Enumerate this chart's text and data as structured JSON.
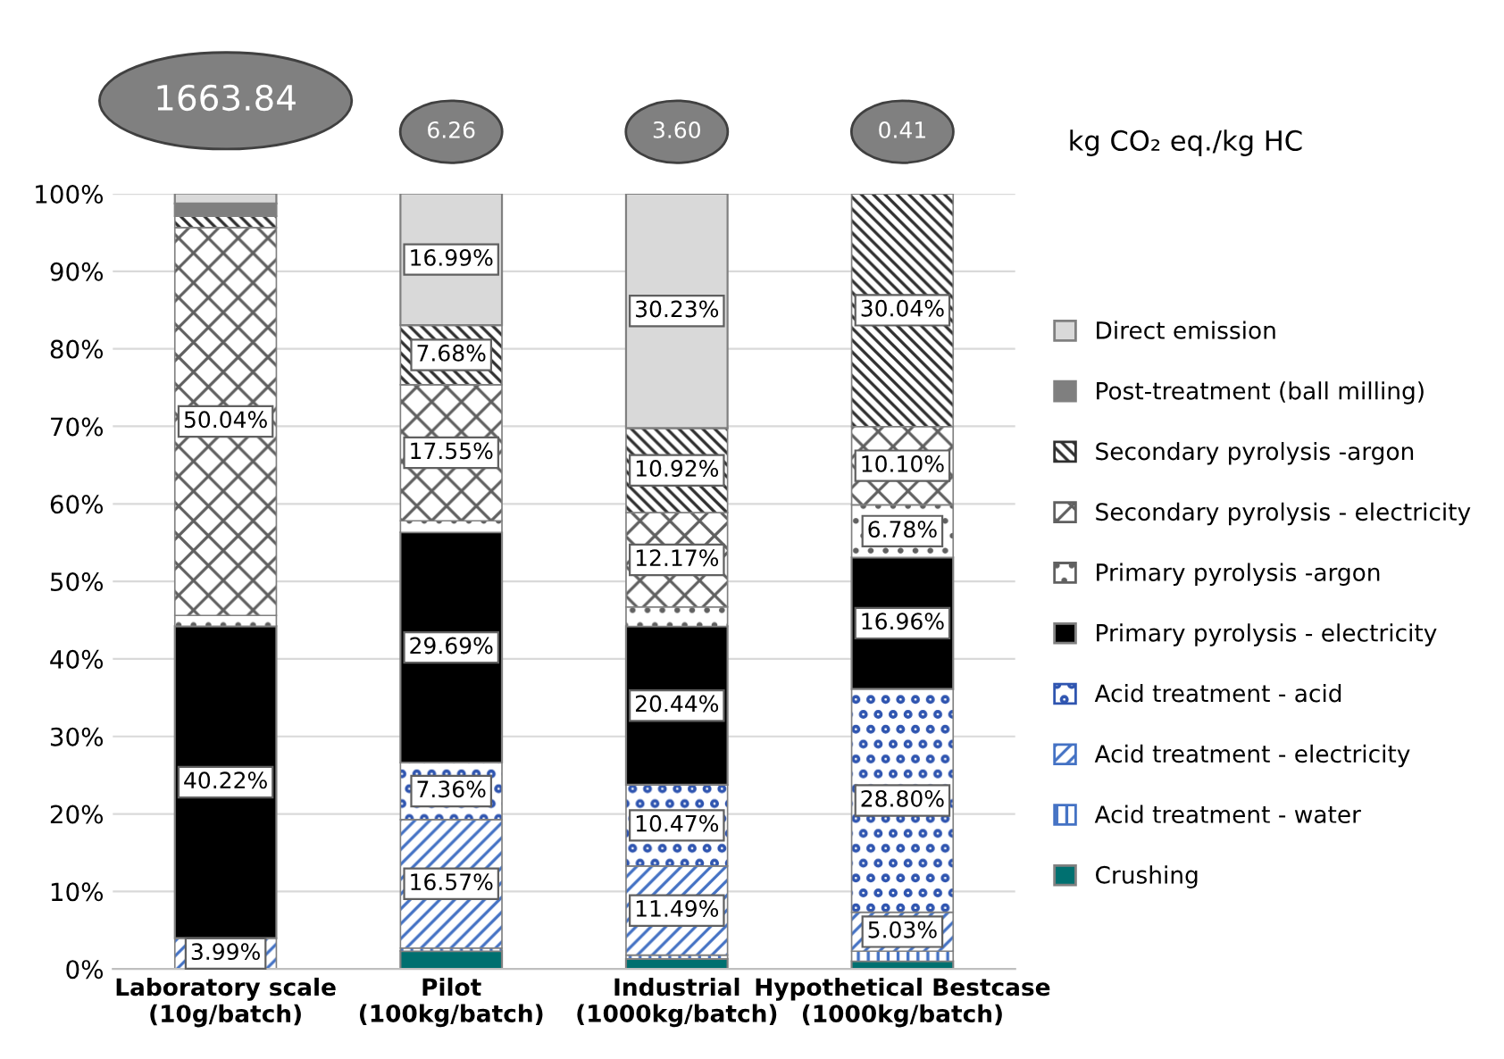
{
  "chart_data": {
    "type": "bar",
    "stacked": true,
    "categories": [
      "Laboratory scale\n(10g/batch)",
      "Pilot\n(100kg/batch)",
      "Industrial\n(1000kg/batch)",
      "Hypothetical Bestcase\n(1000kg/batch)"
    ],
    "series": [
      {
        "name": "Crushing",
        "color": "#007070",
        "values": [
          0,
          2.3,
          1.3,
          1.0
        ],
        "value_labels": [
          null,
          null,
          null,
          null
        ]
      },
      {
        "name": "Acid treatment - water",
        "color": "#4472c4",
        "values": [
          0,
          0.4,
          0.5,
          1.3
        ],
        "value_labels": [
          null,
          null,
          null,
          null
        ]
      },
      {
        "name": "Acid treatment - electricity",
        "color": "#4472c4",
        "values": [
          3.99,
          16.57,
          11.49,
          5.03
        ],
        "value_labels": [
          "3.99%",
          "16.57%",
          "11.49%",
          "5.03%"
        ]
      },
      {
        "name": "Acid treatment - acid",
        "color": "#2f55b0",
        "values": [
          0,
          7.36,
          10.47,
          28.8
        ],
        "value_labels": [
          null,
          "7.36%",
          "10.47%",
          "28.80%"
        ]
      },
      {
        "name": "Primary pyrolysis - electricity",
        "color": "#000000",
        "values": [
          40.22,
          29.69,
          20.44,
          16.96
        ],
        "value_labels": [
          "40.22%",
          "29.69%",
          "20.44%",
          "16.96%"
        ]
      },
      {
        "name": "Primary pyrolysis -argon",
        "color": "#606060",
        "values": [
          1.4,
          1.5,
          2.5,
          6.78
        ],
        "value_labels": [
          null,
          null,
          null,
          "6.78%"
        ]
      },
      {
        "name": "Secondary pyrolysis - electricity",
        "color": "#606060",
        "values": [
          50.04,
          17.55,
          12.17,
          10.1
        ],
        "value_labels": [
          "50.04%",
          "17.55%",
          "12.17%",
          "10.10%"
        ]
      },
      {
        "name": "Secondary pyrolysis -argon",
        "color": "#303030",
        "values": [
          1.5,
          7.68,
          10.92,
          30.04
        ],
        "value_labels": [
          null,
          "7.68%",
          "10.92%",
          "30.04%"
        ]
      },
      {
        "name": "Post-treatment (ball milling)",
        "color": "#7f7f7f",
        "values": [
          1.6,
          0,
          0,
          0
        ],
        "value_labels": [
          null,
          null,
          null,
          null
        ]
      },
      {
        "name": "Direct emission",
        "color": "#d9d9d9",
        "values": [
          1.3,
          16.99,
          30.23,
          0
        ],
        "value_labels": [
          null,
          "16.99%",
          "30.23%",
          null
        ]
      }
    ],
    "ylim": [
      0,
      100
    ],
    "yticks": [
      {
        "value": 0,
        "label": "0%"
      },
      {
        "value": 10,
        "label": "10%"
      },
      {
        "value": 20,
        "label": "20%"
      },
      {
        "value": 30,
        "label": "30%"
      },
      {
        "value": 40,
        "label": "40%"
      },
      {
        "value": 50,
        "label": "50%"
      },
      {
        "value": 60,
        "label": "60%"
      },
      {
        "value": 70,
        "label": "70%"
      },
      {
        "value": 80,
        "label": "80%"
      },
      {
        "value": 90,
        "label": "90%"
      },
      {
        "value": 100,
        "label": "100%"
      }
    ],
    "grid": "y",
    "legend": "right",
    "annotations": [
      "1663.84",
      "6.26",
      "3.60",
      "0.41",
      "kg CO₂ eq./kg HC"
    ]
  }
}
